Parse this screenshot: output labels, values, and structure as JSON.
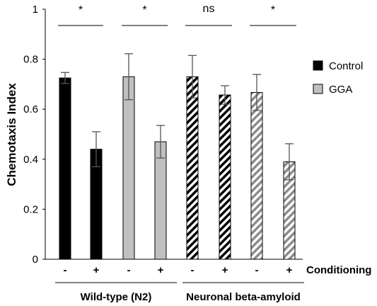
{
  "chart_data": {
    "type": "bar",
    "title": "",
    "ylabel": "Chemotaxis Index",
    "xlabel": "Conditioning",
    "ylim": [
      0,
      1
    ],
    "yticks": [
      0,
      0.2,
      0.4,
      0.6,
      0.8,
      1
    ],
    "ytick_labels": [
      "0",
      "0.2",
      "0.4",
      "0.6",
      "0.8",
      "1"
    ],
    "legend": [
      {
        "label": "Control",
        "color": "#000000"
      },
      {
        "label": "GGA",
        "color": "#c0c0c0"
      }
    ],
    "legend_position": "right",
    "groups": [
      {
        "label": "Wild-type (N2)",
        "pattern": "solid"
      },
      {
        "label": "Neuronal beta-amyloid",
        "pattern": "hatched"
      }
    ],
    "bars": [
      {
        "group": 0,
        "treatment": "Control",
        "conditioning": "-",
        "value": 0.725,
        "error": 0.022
      },
      {
        "group": 0,
        "treatment": "Control",
        "conditioning": "+",
        "value": 0.44,
        "error": 0.07
      },
      {
        "group": 0,
        "treatment": "GGA",
        "conditioning": "-",
        "value": 0.73,
        "error": 0.092
      },
      {
        "group": 0,
        "treatment": "GGA",
        "conditioning": "+",
        "value": 0.47,
        "error": 0.065
      },
      {
        "group": 1,
        "treatment": "Control",
        "conditioning": "-",
        "value": 0.73,
        "error": 0.085
      },
      {
        "group": 1,
        "treatment": "Control",
        "conditioning": "+",
        "value": 0.657,
        "error": 0.037
      },
      {
        "group": 1,
        "treatment": "GGA",
        "conditioning": "-",
        "value": 0.667,
        "error": 0.072
      },
      {
        "group": 1,
        "treatment": "GGA",
        "conditioning": "+",
        "value": 0.39,
        "error": 0.072
      }
    ],
    "significance": [
      "*",
      "*",
      "ns",
      "*"
    ],
    "colors": {
      "control": "#000000",
      "gga": "#c0c0c0",
      "hatch_bg": "#ffffff"
    }
  }
}
